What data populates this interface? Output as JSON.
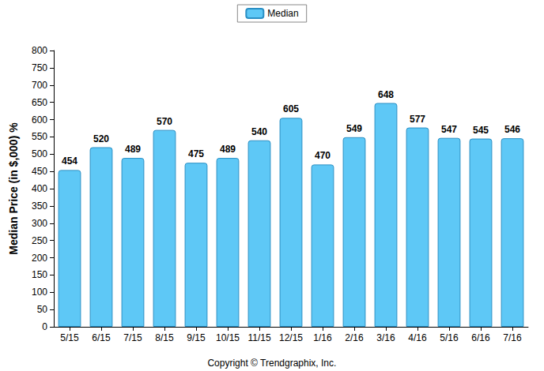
{
  "chart_data": {
    "type": "bar",
    "y_label": "Median Price (in $,000) %",
    "annotations": [
      "Copyright © Trendgraphix, Inc."
    ],
    "categories": [
      "5/15",
      "6/15",
      "7/15",
      "8/15",
      "9/15",
      "10/15",
      "11/15",
      "12/15",
      "1/16",
      "2/16",
      "3/16",
      "4/16",
      "5/16",
      "6/16",
      "7/16"
    ],
    "series": [
      {
        "name": "Median",
        "color": "#5ec8f6",
        "values": [
          454,
          520,
          489,
          570,
          475,
          489,
          540,
          605,
          470,
          549,
          648,
          577,
          547,
          545,
          546
        ]
      }
    ],
    "ylim": [
      0,
      800
    ],
    "yticks": [
      0,
      50,
      100,
      150,
      200,
      250,
      300,
      350,
      400,
      450,
      500,
      550,
      600,
      650,
      700,
      750,
      800
    ],
    "grid": false,
    "legend": "top",
    "data_labels": true
  }
}
